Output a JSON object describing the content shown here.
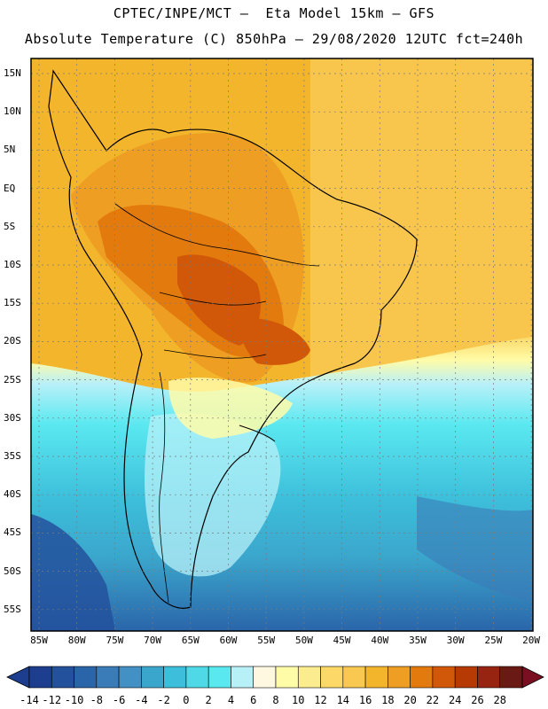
{
  "header": {
    "line1": "CPTEC/INPE/MCT –  Eta Model 15km – GFS",
    "line2": "Absolute Temperature (C) 850hPa – 29/08/2020 12UTC fct=240h"
  },
  "map": {
    "region": "South America",
    "lat_labels": [
      "15N",
      "10N",
      "5N",
      "EQ",
      "5S",
      "10S",
      "15S",
      "20S",
      "25S",
      "30S",
      "35S",
      "40S",
      "45S",
      "50S",
      "55S"
    ],
    "lon_labels": [
      "85W",
      "80W",
      "75W",
      "70W",
      "65W",
      "60W",
      "55W",
      "50W",
      "45W",
      "40W",
      "35W",
      "30W",
      "25W",
      "20W"
    ]
  },
  "colorbar": {
    "labels": [
      "-14",
      "-12",
      "-10",
      "-8",
      "-6",
      "-4",
      "-2",
      "0",
      "2",
      "4",
      "6",
      "8",
      "10",
      "12",
      "14",
      "16",
      "18",
      "20",
      "22",
      "24",
      "26",
      "28"
    ],
    "colors": [
      "#1d3d8e",
      "#23519c",
      "#2a65aa",
      "#3a7cb8",
      "#4290c4",
      "#3ba6cc",
      "#3dbfdb",
      "#4fd8e6",
      "#5ae8f0",
      "#b8f0f8",
      "#fff8e0",
      "#fffca8",
      "#fbec90",
      "#fbd868",
      "#f8c850",
      "#f3b52c",
      "#ee9e22",
      "#e27a0e",
      "#d05808",
      "#b53a04",
      "#962410",
      "#6a1a14"
    ],
    "min_label": "-14",
    "max_label": "28"
  }
}
